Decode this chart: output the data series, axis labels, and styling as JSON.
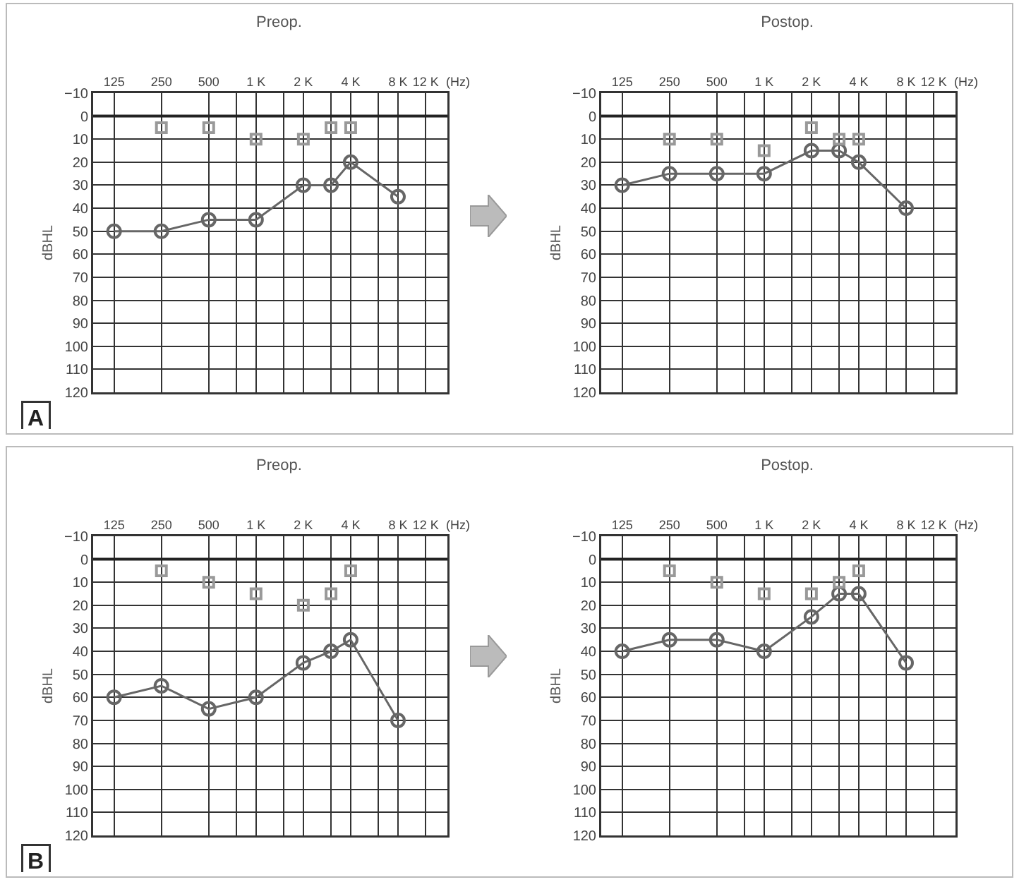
{
  "chart_data": [
    {
      "type": "line",
      "title": "Preop.",
      "xlabel": "(Hz)",
      "ylabel": "dBHL",
      "log": "x",
      "grid": true,
      "x": [
        125,
        250,
        500,
        1000,
        2000,
        3000,
        4000,
        8000
      ],
      "xlim": [
        92,
        16500
      ],
      "xticks": [
        125,
        250,
        500,
        {
          "value": 750,
          "label": null
        },
        {
          "value": 1000,
          "label": "1 K"
        },
        {
          "value": 1500,
          "label": null
        },
        {
          "value": 2000,
          "label": "2 K"
        },
        {
          "value": 3000,
          "label": null
        },
        {
          "value": 4000,
          "label": "4 K"
        },
        {
          "value": 6000,
          "label": null
        },
        {
          "value": 8000,
          "label": "8 K"
        },
        {
          "value": 12000,
          "label": "12 K"
        }
      ],
      "ylim": [
        120,
        -10
      ],
      "yticks": [
        -10,
        0,
        10,
        20,
        30,
        40,
        50,
        60,
        70,
        80,
        90,
        100,
        110,
        120
      ],
      "series": [
        {
          "color": "#666666",
          "marker": "circle",
          "values": [
            50,
            50,
            45,
            45,
            30,
            30,
            20,
            35
          ]
        },
        {
          "type": "scatter",
          "color": "#999999",
          "marker": "square",
          "x": [
            250,
            500,
            1000,
            2000,
            3000,
            4000
          ],
          "values": [
            5,
            5,
            10,
            10,
            5,
            5
          ]
        }
      ],
      "ref_lines": [
        {
          "axis": "y",
          "value": 0,
          "color": "#222222"
        }
      ],
      "annotations": [
        "A"
      ]
    },
    {
      "type": "line",
      "title": "Postop.",
      "xlabel": "(Hz)",
      "ylabel": "dBHL",
      "log": "x",
      "grid": true,
      "x": [
        125,
        250,
        500,
        1000,
        2000,
        3000,
        4000,
        8000
      ],
      "xlim": [
        92,
        16500
      ],
      "xticks": [
        125,
        250,
        500,
        {
          "value": 750,
          "label": null
        },
        {
          "value": 1000,
          "label": "1 K"
        },
        {
          "value": 1500,
          "label": null
        },
        {
          "value": 2000,
          "label": "2 K"
        },
        {
          "value": 3000,
          "label": null
        },
        {
          "value": 4000,
          "label": "4 K"
        },
        {
          "value": 6000,
          "label": null
        },
        {
          "value": 8000,
          "label": "8 K"
        },
        {
          "value": 12000,
          "label": "12 K"
        }
      ],
      "ylim": [
        120,
        -10
      ],
      "yticks": [
        -10,
        0,
        10,
        20,
        30,
        40,
        50,
        60,
        70,
        80,
        90,
        100,
        110,
        120
      ],
      "series": [
        {
          "color": "#666666",
          "marker": "circle",
          "values": [
            30,
            25,
            25,
            25,
            15,
            15,
            20,
            40
          ]
        },
        {
          "type": "scatter",
          "color": "#999999",
          "marker": "square",
          "x": [
            250,
            500,
            1000,
            2000,
            3000,
            4000
          ],
          "values": [
            10,
            10,
            15,
            5,
            10,
            10
          ]
        }
      ],
      "ref_lines": [
        {
          "axis": "y",
          "value": 0,
          "color": "#222222"
        }
      ]
    },
    {
      "type": "line",
      "title": "Preop.",
      "xlabel": "(Hz)",
      "ylabel": "dBHL",
      "log": "x",
      "grid": true,
      "x": [
        125,
        250,
        500,
        1000,
        2000,
        3000,
        4000,
        8000
      ],
      "xlim": [
        92,
        16500
      ],
      "xticks": [
        125,
        250,
        500,
        {
          "value": 750,
          "label": null
        },
        {
          "value": 1000,
          "label": "1 K"
        },
        {
          "value": 1500,
          "label": null
        },
        {
          "value": 2000,
          "label": "2 K"
        },
        {
          "value": 3000,
          "label": null
        },
        {
          "value": 4000,
          "label": "4 K"
        },
        {
          "value": 6000,
          "label": null
        },
        {
          "value": 8000,
          "label": "8 K"
        },
        {
          "value": 12000,
          "label": "12 K"
        }
      ],
      "ylim": [
        120,
        -10
      ],
      "yticks": [
        -10,
        0,
        10,
        20,
        30,
        40,
        50,
        60,
        70,
        80,
        90,
        100,
        110,
        120
      ],
      "series": [
        {
          "color": "#666666",
          "marker": "circle",
          "values": [
            60,
            55,
            65,
            60,
            45,
            40,
            35,
            70
          ]
        },
        {
          "type": "scatter",
          "color": "#999999",
          "marker": "square",
          "x": [
            250,
            500,
            1000,
            2000,
            3000,
            4000
          ],
          "values": [
            5,
            10,
            15,
            20,
            15,
            5
          ]
        }
      ],
      "ref_lines": [
        {
          "axis": "y",
          "value": 0,
          "color": "#222222"
        }
      ],
      "annotations": [
        "B"
      ]
    },
    {
      "type": "line",
      "title": "Postop.",
      "xlabel": "(Hz)",
      "ylabel": "dBHL",
      "log": "x",
      "grid": true,
      "x": [
        125,
        250,
        500,
        1000,
        2000,
        3000,
        4000,
        8000
      ],
      "xlim": [
        92,
        16500
      ],
      "xticks": [
        125,
        250,
        500,
        {
          "value": 750,
          "label": null
        },
        {
          "value": 1000,
          "label": "1 K"
        },
        {
          "value": 1500,
          "label": null
        },
        {
          "value": 2000,
          "label": "2 K"
        },
        {
          "value": 3000,
          "label": null
        },
        {
          "value": 4000,
          "label": "4 K"
        },
        {
          "value": 6000,
          "label": null
        },
        {
          "value": 8000,
          "label": "8 K"
        },
        {
          "value": 12000,
          "label": "12 K"
        }
      ],
      "ylim": [
        120,
        -10
      ],
      "yticks": [
        -10,
        0,
        10,
        20,
        30,
        40,
        50,
        60,
        70,
        80,
        90,
        100,
        110,
        120
      ],
      "series": [
        {
          "color": "#666666",
          "marker": "circle",
          "values": [
            40,
            35,
            35,
            40,
            25,
            15,
            15,
            45
          ]
        },
        {
          "type": "scatter",
          "color": "#999999",
          "marker": "square",
          "x": [
            250,
            500,
            1000,
            2000,
            3000,
            4000
          ],
          "values": [
            5,
            10,
            15,
            15,
            10,
            5
          ]
        }
      ],
      "ref_lines": [
        {
          "axis": "y",
          "value": 0,
          "color": "#222222"
        }
      ]
    }
  ]
}
